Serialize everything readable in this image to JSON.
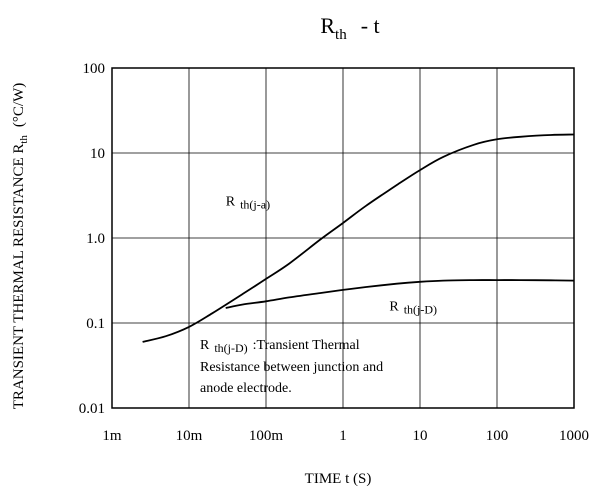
{
  "chart_data": {
    "type": "line",
    "title": {
      "main": "R",
      "sub": "th",
      "rest": "-   t"
    },
    "xlabel": "TIME t  (S)",
    "ylabel": {
      "main": "TRANSIENT THERMAL RESISTANCE R",
      "sub": "th",
      "unit": "(°C/W)"
    },
    "x_scale": "log",
    "y_scale": "log",
    "xlim": [
      0.001,
      1000
    ],
    "ylim": [
      0.01,
      100
    ],
    "x_ticks": [
      {
        "value": 0.001,
        "label": "1m"
      },
      {
        "value": 0.01,
        "label": "10m"
      },
      {
        "value": 0.1,
        "label": "100m"
      },
      {
        "value": 1,
        "label": "1"
      },
      {
        "value": 10,
        "label": "10"
      },
      {
        "value": 100,
        "label": "100"
      },
      {
        "value": 1000,
        "label": "1000"
      }
    ],
    "y_ticks": [
      {
        "value": 0.01,
        "label": "0.01"
      },
      {
        "value": 0.1,
        "label": "0.1"
      },
      {
        "value": 1,
        "label": "1.0"
      },
      {
        "value": 10,
        "label": "10"
      },
      {
        "value": 100,
        "label": "100"
      }
    ],
    "grid": true,
    "series": [
      {
        "name": "R th(j-a)",
        "x": [
          0.0025,
          0.005,
          0.01,
          0.02,
          0.05,
          0.1,
          0.2,
          0.5,
          1,
          2,
          5,
          10,
          20,
          50,
          100,
          200,
          500,
          1000
        ],
        "y": [
          0.06,
          0.07,
          0.09,
          0.13,
          0.22,
          0.33,
          0.5,
          0.95,
          1.5,
          2.4,
          4.2,
          6.3,
          9.0,
          12.5,
          14.5,
          15.5,
          16.3,
          16.5
        ]
      },
      {
        "name": "R th(j-D)",
        "x": [
          0.03,
          0.05,
          0.1,
          0.2,
          0.5,
          1,
          2,
          5,
          10,
          20,
          50,
          100,
          200,
          500,
          1000
        ],
        "y": [
          0.15,
          0.165,
          0.18,
          0.2,
          0.225,
          0.245,
          0.265,
          0.29,
          0.305,
          0.315,
          0.32,
          0.32,
          0.32,
          0.318,
          0.315
        ]
      }
    ],
    "annotations": [
      {
        "main": "R",
        "sub": "th(j-a)",
        "x": 0.03,
        "y": 2.4
      },
      {
        "main": "R",
        "sub": "th(j-D)",
        "x": 4,
        "y": 0.14
      }
    ],
    "note": {
      "main": "R",
      "sub": "th(j-D)",
      "line1_rest": ":Transient Thermal",
      "line2": "Resistance between junction and",
      "line3": "anode electrode."
    }
  }
}
